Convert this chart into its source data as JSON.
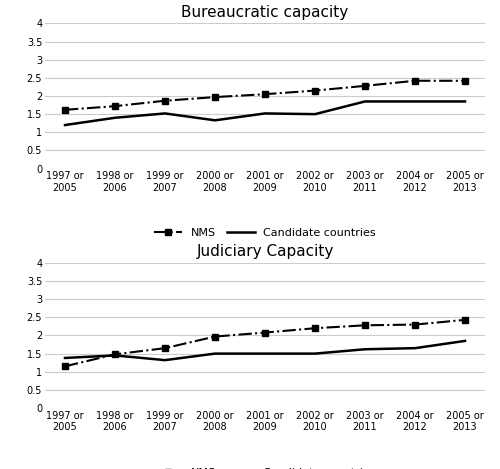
{
  "x_labels": [
    "1997 or\n2005",
    "1998 or\n2006",
    "1999 or\n2007",
    "2000 or\n2008",
    "2001 or\n2009",
    "2002 or\n2010",
    "2003 or\n2011",
    "2004 or\n2012",
    "2005 or\n2013"
  ],
  "bureaucratic": {
    "title": "Bureaucratic capacity",
    "nms": [
      1.62,
      1.72,
      1.87,
      1.97,
      2.05,
      2.15,
      2.28,
      2.42,
      2.42
    ],
    "candidate": [
      1.2,
      1.4,
      1.52,
      1.33,
      1.52,
      1.5,
      1.85,
      1.85,
      1.85
    ]
  },
  "judiciary": {
    "title": "Judiciary Capacity",
    "nms": [
      1.15,
      1.48,
      1.65,
      1.97,
      2.08,
      2.2,
      2.28,
      2.3,
      2.43
    ],
    "candidate": [
      1.38,
      1.45,
      1.32,
      1.5,
      1.5,
      1.5,
      1.62,
      1.65,
      1.85
    ]
  },
  "legend_nms": "NMS",
  "legend_candidate": "Candidate countries",
  "ylim": [
    0,
    4
  ],
  "yticks": [
    0,
    0.5,
    1,
    1.5,
    2,
    2.5,
    3,
    3.5,
    4
  ],
  "line_color": "#000000",
  "background_color": "#ffffff",
  "grid_color": "#cccccc",
  "title_fontsize": 11,
  "tick_fontsize": 7,
  "legend_fontsize": 8
}
